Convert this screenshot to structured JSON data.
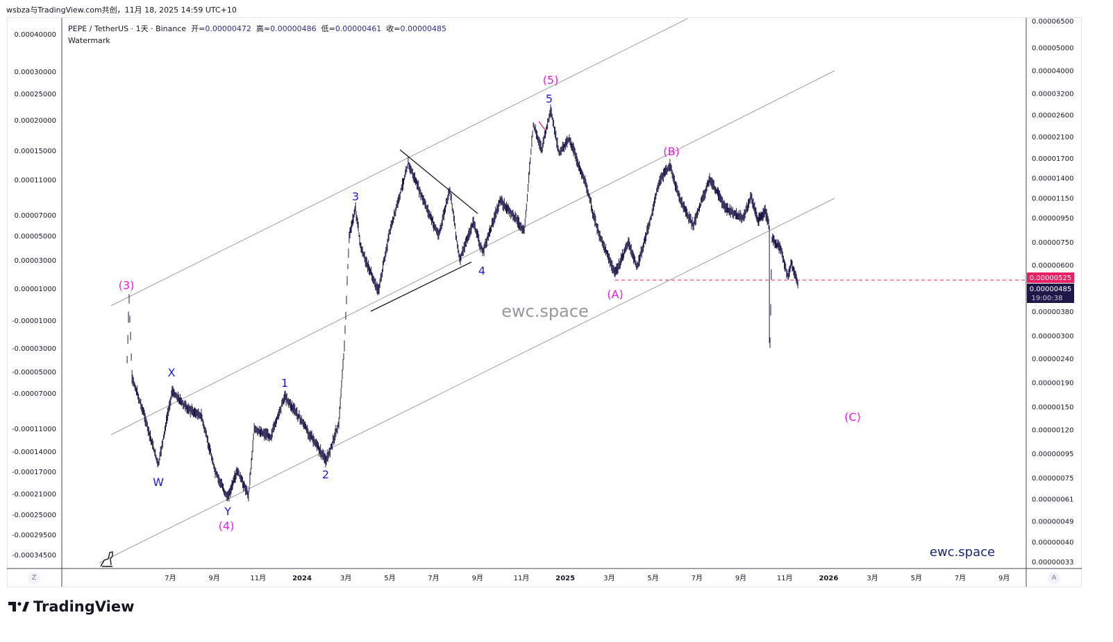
{
  "header": {
    "credit": "wsbza与TradingView.com共创，11月 18, 2025 14:59 UTC+10"
  },
  "legend": {
    "symbol": "PEPE / TetherUS · 1天 · Binance",
    "open_label": "开=",
    "open": "0.00000472",
    "high_label": "高=",
    "high": "0.00000486",
    "low_label": "低=",
    "low": "0.00000461",
    "close_label": "收=",
    "close": "0.00000485",
    "indicator": "Watermark"
  },
  "brand": {
    "name": "TradingView"
  },
  "axis_buttons": {
    "left": "Z",
    "right": "A"
  },
  "colors": {
    "candle": "#1e1548",
    "wave_primary": "#e91ee0",
    "wave_minor": "#1a1ae6",
    "channel": "#9e9e9e",
    "price_tag_red": "#e91e63",
    "price_tag_dark": "#21184a"
  },
  "chart_data": {
    "type": "line",
    "title": "PEPE / TetherUS · 1天 · Binance",
    "yscale": "log",
    "ylim": [
      3.3e-07,
      6.5e-05
    ],
    "x_unit": "months since 2024-01",
    "right_ticks": [
      "0.00006500",
      "0.00005000",
      "0.00004000",
      "0.00003200",
      "0.00002600",
      "0.00002100",
      "0.00001700",
      "0.00001400",
      "0.00001150",
      "0.00000950",
      "0.00000750",
      "0.00000600",
      "0.00000380",
      "0.00000300",
      "0.00000240",
      "0.00000190",
      "0.00000150",
      "0.00000120",
      "0.00000095",
      "0.00000075",
      "0.00000061",
      "0.00000049",
      "0.00000040",
      "0.00000033"
    ],
    "left_ticks": [
      "0.00040000",
      "0.00030000",
      "0.00025000",
      "0.00020000",
      "0.00015000",
      "0.00011000",
      "0.00007000",
      "0.00005000",
      "0.00003000",
      "0.00001000",
      "-0.00001000",
      "-0.00003000",
      "-0.00005000",
      "-0.00007000",
      "-0.00011000",
      "-0.00014000",
      "-0.00017000",
      "-0.00021000",
      "-0.00025000",
      "-0.00029500",
      "-0.00034500"
    ],
    "x_ticks": [
      {
        "label": "7月",
        "m": -6
      },
      {
        "label": "9月",
        "m": -4
      },
      {
        "label": "11月",
        "m": -2
      },
      {
        "label": "2024",
        "m": 0,
        "bold": true
      },
      {
        "label": "3月",
        "m": 2
      },
      {
        "label": "5月",
        "m": 4
      },
      {
        "label": "7月",
        "m": 6
      },
      {
        "label": "9月",
        "m": 8
      },
      {
        "label": "11月",
        "m": 10
      },
      {
        "label": "2025",
        "m": 12,
        "bold": true
      },
      {
        "label": "3月",
        "m": 14
      },
      {
        "label": "5月",
        "m": 16
      },
      {
        "label": "7月",
        "m": 18
      },
      {
        "label": "9月",
        "m": 20
      },
      {
        "label": "11月",
        "m": 22
      },
      {
        "label": "2026",
        "m": 24,
        "bold": true
      },
      {
        "label": "3月",
        "m": 26
      },
      {
        "label": "5月",
        "m": 28
      },
      {
        "label": "7月",
        "m": 30
      },
      {
        "label": "9月",
        "m": 32
      }
    ],
    "price_tags": {
      "level": "0.00000525",
      "last": "0.00000485",
      "countdown": "19:00:38"
    },
    "series": [
      {
        "name": "PEPEUSDT",
        "points": [
          [
            -7.97,
            2.35e-06
          ],
          [
            -7.88,
            4.34e-06
          ],
          [
            -7.75,
            1.99e-06
          ],
          [
            -7.28,
            1.47e-06
          ],
          [
            -6.55,
            8.5e-07
          ],
          [
            -5.92,
            1.74e-06
          ],
          [
            -5.22,
            1.47e-06
          ],
          [
            -4.59,
            1.37e-06
          ],
          [
            -3.96,
            7.96e-07
          ],
          [
            -3.39,
            6.15e-07
          ],
          [
            -2.94,
            8e-07
          ],
          [
            -2.44,
            6.3e-07
          ],
          [
            -2.18,
            1.2e-06
          ],
          [
            -1.42,
            1.12e-06
          ],
          [
            -0.79,
            1.66e-06
          ],
          [
            -0.16,
            1.37e-06
          ],
          [
            0.41,
            1.12e-06
          ],
          [
            1.11,
            8.8e-07
          ],
          [
            1.68,
            1.28e-06
          ],
          [
            1.93,
            2.7e-06
          ],
          [
            2.15,
            7.96e-06
          ],
          [
            2.44,
            1.04e-05
          ],
          [
            2.69,
            6.95e-06
          ],
          [
            3.48,
            4.63e-06
          ],
          [
            3.96,
            7.96e-06
          ],
          [
            4.84,
            1.62e-05
          ],
          [
            5.54,
            1.12e-05
          ],
          [
            6.23,
            7.96e-06
          ],
          [
            6.74,
            1.26e-05
          ],
          [
            7.18,
            6.28e-06
          ],
          [
            7.82,
            9.1e-06
          ],
          [
            8.23,
            6.73e-06
          ],
          [
            9.02,
            1.12e-05
          ],
          [
            9.65,
            9.75e-06
          ],
          [
            10.13,
            8.24e-06
          ],
          [
            10.54,
            2.36e-05
          ],
          [
            10.92,
            1.86e-05
          ],
          [
            11.33,
            2.7e-05
          ],
          [
            11.71,
            1.79e-05
          ],
          [
            12.18,
            2.06e-05
          ],
          [
            12.97,
            1.28e-05
          ],
          [
            13.45,
            8.5e-06
          ],
          [
            14.27,
            5.48e-06
          ],
          [
            14.87,
            7.45e-06
          ],
          [
            15.28,
            5.87e-06
          ],
          [
            15.82,
            8.8e-06
          ],
          [
            16.3,
            1.37e-05
          ],
          [
            16.77,
            1.57e-05
          ],
          [
            17.25,
            1.12e-05
          ],
          [
            17.82,
            8.8e-06
          ],
          [
            18.58,
            1.39e-05
          ],
          [
            19.3,
            1.04e-05
          ],
          [
            20.09,
            9.44e-06
          ],
          [
            20.47,
            1.16e-05
          ],
          [
            20.79,
            9.25e-06
          ],
          [
            21.11,
            1.01e-05
          ],
          [
            21.3,
            8.8e-06
          ],
          [
            21.33,
            2.79e-06
          ],
          [
            21.42,
            7.7e-06
          ],
          [
            21.84,
            6.95e-06
          ],
          [
            22.15,
            5.3e-06
          ],
          [
            22.31,
            6.08e-06
          ],
          [
            22.63,
            4.85e-06
          ]
        ]
      }
    ],
    "annotations": {
      "waves": {
        "p3": "(3)",
        "W": "W",
        "X": "X",
        "Y": "Y",
        "p4": "(4)",
        "w1": "1",
        "w2": "2",
        "w3": "3",
        "w4": "4",
        "w5": "5",
        "p5": "(5)",
        "A": "(A)",
        "B": "(B)",
        "C": "(C)"
      },
      "watermark": "ewc.space",
      "brand_text": "ewc.space"
    }
  }
}
